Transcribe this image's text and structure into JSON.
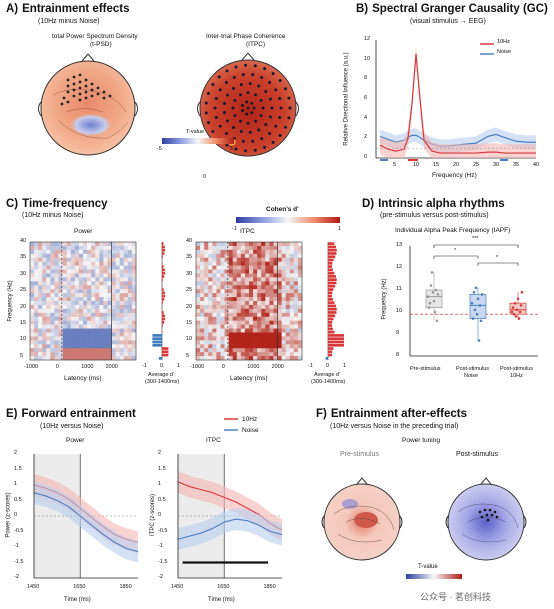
{
  "panelA": {
    "letter": "A)",
    "title": "Entrainment effects",
    "subtitle": "(10Hz minus Noise)",
    "map1_title_1": "total Power Spectrum Density",
    "map1_title_2": "(t-PSD)",
    "map2_title_1": "Inter-trial Phase Coherence",
    "map2_title_2": "(ITPC)",
    "colorbar_label": "T-value",
    "cb_min": "-5",
    "cb_max": "5",
    "cb_zero": "0"
  },
  "panelB": {
    "letter": "B)",
    "title": "Spectral Granger Causality (GC)",
    "subtitle": "(visual stimulus → EEG)",
    "ylabel": "Relative Directional Influence (a.u.)",
    "xlabel": "Frequency (Hz)",
    "legend": [
      "10Hz",
      "Noise"
    ],
    "yticks": [
      "12",
      "10",
      "8",
      "6",
      "4",
      "2",
      "0"
    ],
    "xticks": [
      "5",
      "10",
      "15",
      "20",
      "25",
      "30",
      "35",
      "40"
    ]
  },
  "panelC": {
    "letter": "C)",
    "title": "Time-frequency",
    "subtitle": "(10Hz minus Noise)",
    "cb_label": "Cohen's d'",
    "cb_min": "-1",
    "cb_max": "1",
    "power_title": "Power",
    "itpc_title": "ITPC",
    "ylabel": "Frequency (Hz)",
    "yticks": [
      "40",
      "35",
      "30",
      "25",
      "20",
      "15",
      "10",
      "5"
    ],
    "xticks": [
      "-1000",
      "0",
      "1000",
      "2000"
    ],
    "xlabel": "Latency (ms)",
    "side_xlabel_1": "Average d'",
    "side_xlabel_2": "(300-1400ms)",
    "side_ticks_power": [
      "-1",
      "0",
      "1"
    ],
    "side_ticks_itpc": [
      "-1",
      "0",
      "1"
    ]
  },
  "panelD": {
    "letter": "D)",
    "title": "Intrinsic alpha rhythms",
    "subtitle": "(pre-stimulus versus post-stimulus)",
    "chart_title": "Individual Alpha Peak Frequency (IAPF)",
    "ylabel": "Frequency (Hz)",
    "yticks": [
      "13",
      "12",
      "11",
      "10",
      "9",
      "8"
    ],
    "categories": [
      "Pre-stimulus",
      "Post-stimulus Noise",
      "Post-stimulus 10Hz"
    ],
    "cat_line1": [
      "Pre-stimulus",
      "Post-stimulus",
      "Post-stimulus"
    ],
    "cat_line2": [
      "",
      "Noise",
      "10Hz"
    ],
    "sig": [
      "***",
      "*",
      "*"
    ]
  },
  "panelE": {
    "letter": "E)",
    "title": "Forward entrainment",
    "subtitle": "(10Hz versus Noise)",
    "power_title": "Power",
    "itpc_title": "ITPC",
    "legend": [
      "10Hz",
      "Noise"
    ],
    "ylabel_power": "Power (z-scores)",
    "ylabel_itpc": "ITPC (z-scores)",
    "xlabel": "Time (ms)",
    "yticks": [
      "2",
      "1.5",
      "1",
      "0.5",
      "0",
      "-0.5",
      "-1",
      "-1.5",
      "-2"
    ],
    "xticks": [
      "1450",
      "1650",
      "1850"
    ]
  },
  "panelF": {
    "letter": "F)",
    "title": "Entrainment after-effects",
    "subtitle": "(10Hz versus Noise in the preceding trial)",
    "section": "Power tuning",
    "map1_title": "Pre-stimulus",
    "map2_title": "Post-stimulus",
    "cb_label": "T-value"
  },
  "watermark": "公众号 · 茗创科技",
  "colors": {
    "red": "#d9383a",
    "blue": "#4a7fc1",
    "red_fill": "#f4b6b3",
    "blue_fill": "#b9cff0"
  },
  "chart_data": [
    {
      "type": "line",
      "title": "Spectral Granger Causality (GC)",
      "xlabel": "Frequency (Hz)",
      "ylabel": "Relative Directional Influence (a.u.)",
      "xlim": [
        0,
        40
      ],
      "ylim": [
        0,
        12
      ],
      "x": [
        1,
        3,
        5,
        7,
        8,
        9,
        10,
        11,
        12,
        14,
        16,
        18,
        20,
        22,
        25,
        28,
        30,
        32,
        35,
        38,
        40
      ],
      "series": [
        {
          "name": "10Hz",
          "values": [
            1.3,
            0.9,
            0.7,
            0.9,
            2.0,
            5.5,
            10.6,
            6.0,
            1.8,
            0.7,
            0.5,
            0.5,
            0.5,
            0.5,
            0.5,
            0.6,
            0.6,
            0.5,
            0.5,
            0.5,
            0.5
          ]
        },
        {
          "name": "Noise",
          "values": [
            2.2,
            1.9,
            1.6,
            1.8,
            2.1,
            2.3,
            2.3,
            2.1,
            1.8,
            1.4,
            1.2,
            1.2,
            1.3,
            1.4,
            1.5,
            2.2,
            2.4,
            2.1,
            1.7,
            1.6,
            1.6
          ]
        }
      ]
    },
    {
      "type": "scatter",
      "title": "Individual Alpha Peak Frequency (IAPF)",
      "ylabel": "Frequency (Hz)",
      "ylim": [
        8,
        13
      ],
      "categories": [
        "Pre-stimulus",
        "Post-stimulus Noise",
        "Post-stimulus 10Hz"
      ],
      "series": [
        {
          "values": [
            10.7,
            10.2,
            10.4,
            11.2,
            11.8,
            10.9,
            10.5,
            10.0,
            11.0,
            9.6,
            10.8
          ]
        },
        {
          "values": [
            10.4,
            9.7,
            10.9,
            10.1,
            11.1,
            9.9,
            10.6,
            8.7,
            10.3,
            9.6,
            10.8
          ]
        },
        {
          "values": [
            10.0,
            10.2,
            9.9,
            10.4,
            9.8,
            10.1,
            10.6,
            9.7,
            10.0,
            10.3,
            10.9
          ]
        }
      ]
    },
    {
      "type": "line",
      "title": "Power",
      "xlabel": "Time (ms)",
      "ylabel": "Power (z-scores)",
      "xlim": [
        1450,
        1900
      ],
      "ylim": [
        -2,
        2
      ],
      "x": [
        1450,
        1500,
        1550,
        1600,
        1650,
        1700,
        1750,
        1800,
        1850,
        1900
      ],
      "series": [
        {
          "name": "10Hz",
          "values": [
            1.0,
            0.9,
            0.75,
            0.55,
            0.25,
            -0.05,
            -0.35,
            -0.6,
            -0.75,
            -0.85
          ]
        },
        {
          "name": "Noise",
          "values": [
            0.75,
            0.65,
            0.5,
            0.3,
            0.0,
            -0.3,
            -0.6,
            -0.85,
            -1.05,
            -1.15
          ]
        }
      ]
    },
    {
      "type": "line",
      "title": "ITPC",
      "xlabel": "Time (ms)",
      "ylabel": "ITPC (z-scores)",
      "xlim": [
        1450,
        1900
      ],
      "ylim": [
        -2,
        2
      ],
      "x": [
        1450,
        1500,
        1550,
        1600,
        1650,
        1700,
        1750,
        1800,
        1850,
        1900
      ],
      "series": [
        {
          "name": "10Hz",
          "values": [
            1.1,
            0.95,
            0.85,
            0.75,
            0.6,
            0.45,
            0.25,
            0.05,
            -0.25,
            -0.45
          ]
        },
        {
          "name": "Noise",
          "values": [
            -0.75,
            -0.65,
            -0.55,
            -0.4,
            -0.2,
            -0.1,
            -0.15,
            -0.3,
            -0.5,
            -0.6
          ]
        }
      ]
    }
  ]
}
